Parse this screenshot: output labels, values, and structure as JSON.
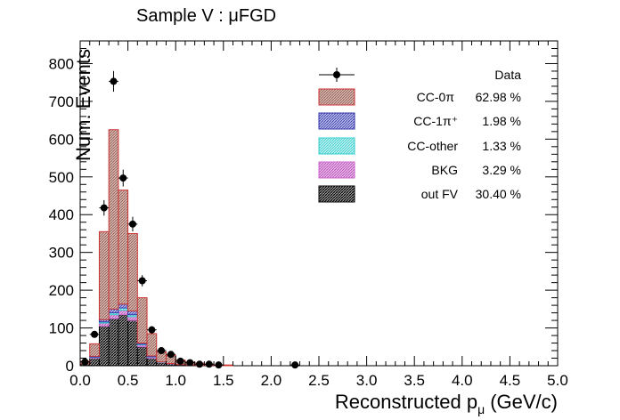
{
  "chart_data": {
    "type": "bar",
    "title": "Sample V : μFGD",
    "ylabel": "Num. Events",
    "xlabel_text": "Reconstructed p",
    "xlabel_subscript": "μ",
    "xlabel_unit": "(GeV/c)",
    "xlim": [
      0,
      5
    ],
    "ylim": [
      0,
      860
    ],
    "x_ticks": [
      "0.0",
      "0.5",
      "1.0",
      "1.5",
      "2.0",
      "2.5",
      "3.0",
      "3.5",
      "4.0",
      "4.5",
      "5.0"
    ],
    "x_tick_values": [
      0,
      0.5,
      1.0,
      1.5,
      2.0,
      2.5,
      3.0,
      3.5,
      4.0,
      4.5,
      5.0
    ],
    "y_ticks": [
      "0",
      "100",
      "200",
      "300",
      "400",
      "500",
      "600",
      "700",
      "800"
    ],
    "y_tick_values": [
      0,
      100,
      200,
      300,
      400,
      500,
      600,
      700,
      800
    ],
    "bin_width": 0.1,
    "bin_low_edges": [
      0.0,
      0.1,
      0.2,
      0.3,
      0.4,
      0.5,
      0.6,
      0.7,
      0.8,
      0.9,
      1.0,
      1.1,
      1.2,
      1.3,
      1.4,
      1.5
    ],
    "series": [
      {
        "name": "out FV",
        "percent": "30.40 %",
        "color": "#000000",
        "values": [
          5,
          20,
          105,
          125,
          135,
          120,
          50,
          20,
          8,
          5,
          3,
          2,
          1,
          1,
          0,
          0
        ]
      },
      {
        "name": "BKG",
        "percent": "3.29 %",
        "color": "#cc66cc",
        "values": [
          0,
          2,
          8,
          10,
          12,
          10,
          5,
          3,
          1,
          1,
          0,
          0,
          0,
          0,
          0,
          0
        ]
      },
      {
        "name": "CC-other",
        "percent": "1.33 %",
        "color": "#33cccc",
        "values": [
          0,
          1,
          3,
          5,
          6,
          5,
          2,
          1,
          1,
          0,
          0,
          0,
          0,
          0,
          0,
          0
        ]
      },
      {
        "name": "CC-1π⁺",
        "percent": "1.98 %",
        "color": "#3333aa",
        "values": [
          0,
          2,
          6,
          10,
          10,
          10,
          3,
          2,
          0,
          0,
          0,
          0,
          0,
          0,
          0,
          0
        ]
      },
      {
        "name": "CC-0π",
        "percent": "62.98 %",
        "color": "#cc3333",
        "values": [
          7,
          33,
          233,
          475,
          302,
          205,
          120,
          59,
          27,
          21,
          12,
          8,
          6,
          3,
          2,
          2
        ]
      }
    ],
    "data_points": {
      "name": "Data",
      "x": [
        0.05,
        0.15,
        0.25,
        0.35,
        0.45,
        0.55,
        0.65,
        0.75,
        0.85,
        0.95,
        1.05,
        1.15,
        1.25,
        1.35,
        1.45,
        2.25
      ],
      "y": [
        10,
        83,
        418,
        753,
        497,
        375,
        225,
        95,
        40,
        30,
        12,
        8,
        4,
        4,
        2,
        2
      ]
    },
    "grid": false,
    "legend_position": "top-right"
  }
}
